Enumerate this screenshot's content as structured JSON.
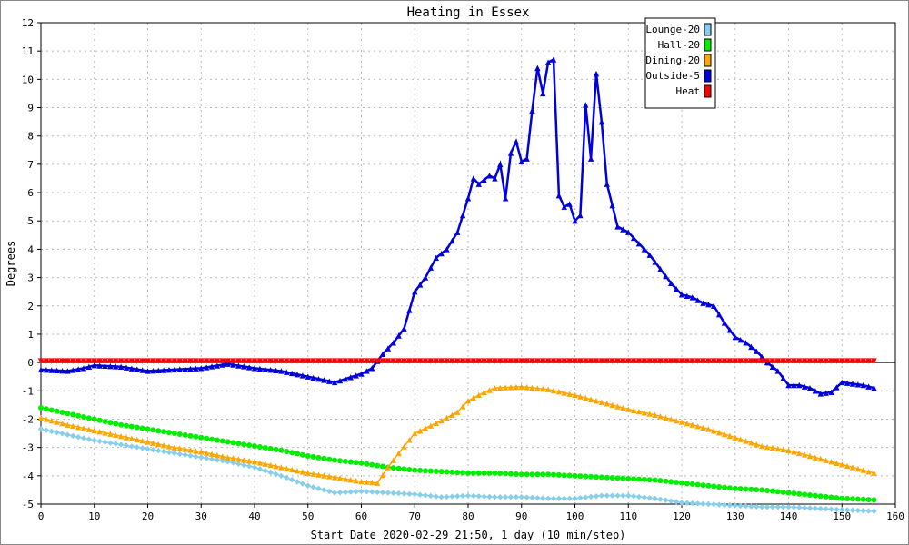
{
  "chart_data": {
    "type": "line",
    "title": "Heating in Essex",
    "xlabel": "Start Date 2020-02-29 21:50, 1 day (10 min/step)",
    "ylabel": "Degrees",
    "xlim": [
      0,
      160
    ],
    "ylim": [
      -5,
      12
    ],
    "xticks": [
      0,
      10,
      20,
      30,
      40,
      50,
      60,
      70,
      80,
      90,
      100,
      110,
      120,
      130,
      140,
      150,
      160
    ],
    "yticks": [
      -5,
      -4,
      -3,
      -2,
      -1,
      0,
      1,
      2,
      3,
      4,
      5,
      6,
      7,
      8,
      9,
      10,
      11,
      12
    ],
    "grid": true,
    "legend_position": "top-right",
    "series": [
      {
        "name": "Lounge-20",
        "color": "#87ceeb",
        "marker": "diamond",
        "points": [
          [
            0,
            -2.35
          ],
          [
            5,
            -2.55
          ],
          [
            10,
            -2.75
          ],
          [
            15,
            -2.9
          ],
          [
            20,
            -3.05
          ],
          [
            25,
            -3.2
          ],
          [
            30,
            -3.35
          ],
          [
            35,
            -3.5
          ],
          [
            40,
            -3.7
          ],
          [
            45,
            -4.0
          ],
          [
            50,
            -4.35
          ],
          [
            55,
            -4.6
          ],
          [
            60,
            -4.55
          ],
          [
            65,
            -4.6
          ],
          [
            70,
            -4.65
          ],
          [
            75,
            -4.75
          ],
          [
            80,
            -4.7
          ],
          [
            85,
            -4.75
          ],
          [
            90,
            -4.75
          ],
          [
            95,
            -4.8
          ],
          [
            100,
            -4.8
          ],
          [
            105,
            -4.7
          ],
          [
            110,
            -4.7
          ],
          [
            115,
            -4.8
          ],
          [
            120,
            -4.95
          ],
          [
            125,
            -5.0
          ],
          [
            130,
            -5.05
          ],
          [
            135,
            -5.1
          ],
          [
            140,
            -5.1
          ],
          [
            145,
            -5.15
          ],
          [
            150,
            -5.2
          ],
          [
            156,
            -5.25
          ]
        ]
      },
      {
        "name": "Hall-20",
        "color": "#00ee00",
        "marker": "circle",
        "points": [
          [
            0,
            -1.6
          ],
          [
            5,
            -1.8
          ],
          [
            10,
            -2.0
          ],
          [
            15,
            -2.2
          ],
          [
            20,
            -2.35
          ],
          [
            25,
            -2.5
          ],
          [
            30,
            -2.65
          ],
          [
            35,
            -2.8
          ],
          [
            40,
            -2.95
          ],
          [
            45,
            -3.1
          ],
          [
            50,
            -3.3
          ],
          [
            55,
            -3.45
          ],
          [
            60,
            -3.55
          ],
          [
            65,
            -3.7
          ],
          [
            70,
            -3.8
          ],
          [
            75,
            -3.85
          ],
          [
            80,
            -3.9
          ],
          [
            85,
            -3.9
          ],
          [
            90,
            -3.95
          ],
          [
            95,
            -3.95
          ],
          [
            100,
            -4.0
          ],
          [
            105,
            -4.05
          ],
          [
            110,
            -4.1
          ],
          [
            115,
            -4.15
          ],
          [
            120,
            -4.25
          ],
          [
            125,
            -4.35
          ],
          [
            130,
            -4.45
          ],
          [
            135,
            -4.5
          ],
          [
            140,
            -4.6
          ],
          [
            145,
            -4.7
          ],
          [
            150,
            -4.8
          ],
          [
            156,
            -4.85
          ]
        ]
      },
      {
        "name": "Dining-20",
        "color": "#ffa500",
        "marker": "triangle-up",
        "points": [
          [
            0,
            -1.95
          ],
          [
            5,
            -2.2
          ],
          [
            10,
            -2.4
          ],
          [
            15,
            -2.6
          ],
          [
            20,
            -2.8
          ],
          [
            25,
            -3.0
          ],
          [
            30,
            -3.15
          ],
          [
            35,
            -3.35
          ],
          [
            40,
            -3.5
          ],
          [
            45,
            -3.7
          ],
          [
            50,
            -3.9
          ],
          [
            55,
            -4.05
          ],
          [
            60,
            -4.2
          ],
          [
            63,
            -4.25
          ],
          [
            65,
            -3.7
          ],
          [
            67,
            -3.2
          ],
          [
            70,
            -2.5
          ],
          [
            75,
            -2.05
          ],
          [
            78,
            -1.75
          ],
          [
            80,
            -1.35
          ],
          [
            83,
            -1.05
          ],
          [
            85,
            -0.9
          ],
          [
            90,
            -0.85
          ],
          [
            95,
            -0.95
          ],
          [
            100,
            -1.15
          ],
          [
            105,
            -1.4
          ],
          [
            110,
            -1.65
          ],
          [
            115,
            -1.85
          ],
          [
            120,
            -2.1
          ],
          [
            125,
            -2.35
          ],
          [
            130,
            -2.65
          ],
          [
            135,
            -2.95
          ],
          [
            140,
            -3.1
          ],
          [
            145,
            -3.35
          ],
          [
            150,
            -3.6
          ],
          [
            156,
            -3.9
          ]
        ]
      },
      {
        "name": "Outside-5",
        "color": "#0000dd",
        "marker": "triangle-up",
        "points": [
          [
            0,
            -0.25
          ],
          [
            5,
            -0.3
          ],
          [
            8,
            -0.2
          ],
          [
            10,
            -0.1
          ],
          [
            15,
            -0.15
          ],
          [
            20,
            -0.3
          ],
          [
            25,
            -0.25
          ],
          [
            30,
            -0.2
          ],
          [
            35,
            -0.05
          ],
          [
            40,
            -0.2
          ],
          [
            45,
            -0.3
          ],
          [
            50,
            -0.5
          ],
          [
            55,
            -0.7
          ],
          [
            60,
            -0.4
          ],
          [
            62,
            -0.2
          ],
          [
            64,
            0.3
          ],
          [
            66,
            0.7
          ],
          [
            68,
            1.2
          ],
          [
            70,
            2.5
          ],
          [
            72,
            3.0
          ],
          [
            74,
            3.7
          ],
          [
            76,
            4.0
          ],
          [
            78,
            4.6
          ],
          [
            80,
            5.8
          ],
          [
            81,
            6.5
          ],
          [
            82,
            6.3
          ],
          [
            84,
            6.6
          ],
          [
            85,
            6.5
          ],
          [
            86,
            7.0
          ],
          [
            87,
            5.8
          ],
          [
            88,
            7.4
          ],
          [
            89,
            7.8
          ],
          [
            90,
            7.1
          ],
          [
            91,
            7.2
          ],
          [
            92,
            8.9
          ],
          [
            93,
            10.4
          ],
          [
            94,
            9.5
          ],
          [
            95,
            10.6
          ],
          [
            96,
            10.7
          ],
          [
            97,
            5.9
          ],
          [
            98,
            5.5
          ],
          [
            99,
            5.6
          ],
          [
            100,
            5.0
          ],
          [
            101,
            5.2
          ],
          [
            102,
            9.1
          ],
          [
            103,
            7.2
          ],
          [
            104,
            10.2
          ],
          [
            105,
            8.5
          ],
          [
            106,
            6.3
          ],
          [
            108,
            4.8
          ],
          [
            110,
            4.6
          ],
          [
            112,
            4.2
          ],
          [
            114,
            3.8
          ],
          [
            116,
            3.3
          ],
          [
            118,
            2.8
          ],
          [
            120,
            2.4
          ],
          [
            122,
            2.3
          ],
          [
            124,
            2.1
          ],
          [
            126,
            2.0
          ],
          [
            128,
            1.4
          ],
          [
            130,
            0.9
          ],
          [
            132,
            0.7
          ],
          [
            134,
            0.4
          ],
          [
            136,
            0.0
          ],
          [
            138,
            -0.3
          ],
          [
            140,
            -0.8
          ],
          [
            142,
            -0.8
          ],
          [
            144,
            -0.9
          ],
          [
            146,
            -1.1
          ],
          [
            148,
            -1.05
          ],
          [
            150,
            -0.7
          ],
          [
            152,
            -0.75
          ],
          [
            154,
            -0.8
          ],
          [
            156,
            -0.9
          ]
        ]
      },
      {
        "name": "Heat",
        "color": "#ff0000",
        "marker": "triangle-down",
        "points": [
          [
            0,
            0.05
          ],
          [
            156,
            0.05
          ]
        ]
      }
    ]
  }
}
